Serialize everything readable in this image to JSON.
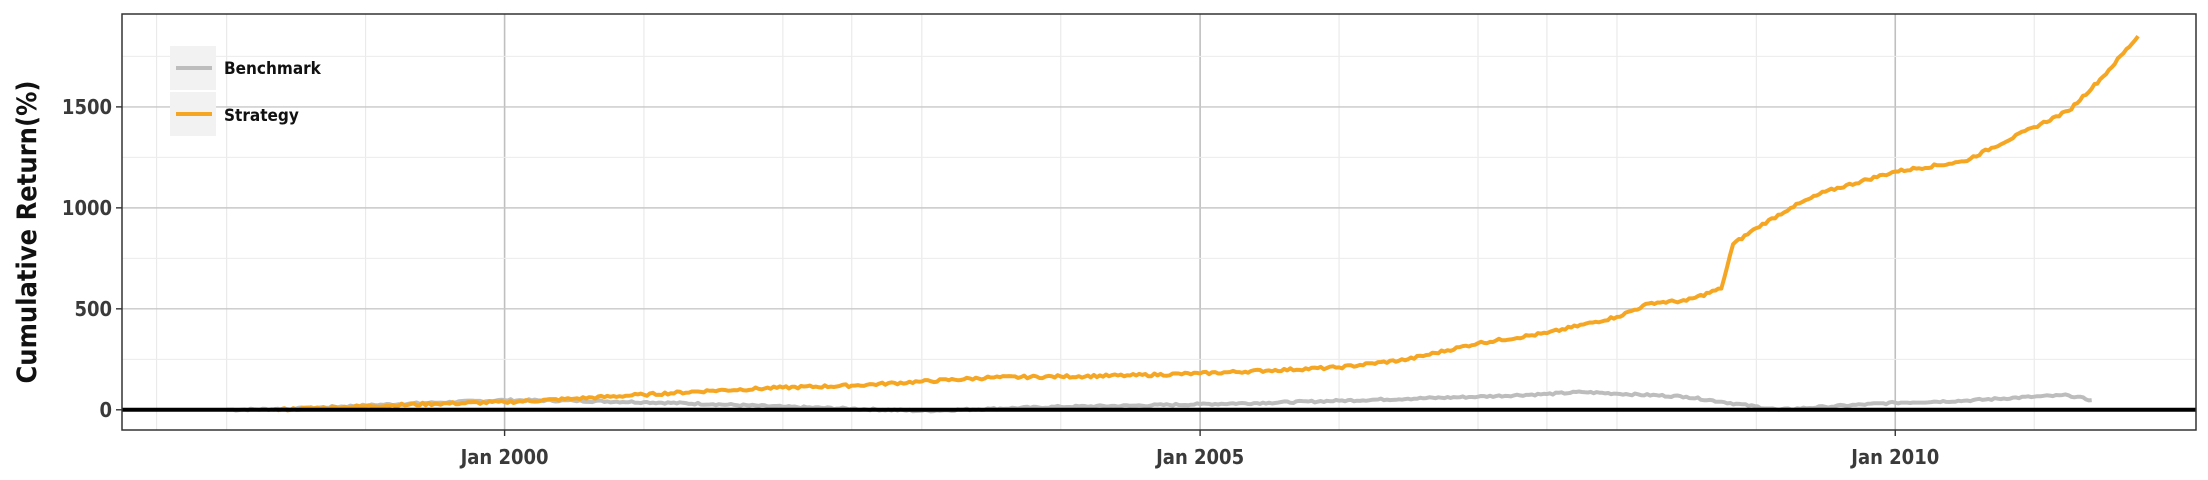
{
  "chart_data": {
    "type": "line",
    "title": "",
    "xlabel": "",
    "ylabel": "Cumulative Return(%)",
    "x_ticks": [
      "Jan 2000",
      "Jan 2005",
      "Jan 2010"
    ],
    "y_ticks": [
      "0",
      "500",
      "1000",
      "1500"
    ],
    "xlim": [
      "1997-04-01",
      "2012-03-01"
    ],
    "ylim": [
      -100,
      1960
    ],
    "grid": true,
    "legend_position": "top-left",
    "series": [
      {
        "name": "Benchmark",
        "color": "#bdbdbd",
        "points": [
          [
            "1998-01-01",
            0
          ],
          [
            "1998-07-01",
            5
          ],
          [
            "1999-01-01",
            22
          ],
          [
            "1999-07-01",
            35
          ],
          [
            "2000-01-01",
            48
          ],
          [
            "2000-07-01",
            45
          ],
          [
            "2001-01-01",
            38
          ],
          [
            "2001-07-01",
            28
          ],
          [
            "2002-01-01",
            15
          ],
          [
            "2002-07-01",
            5
          ],
          [
            "2003-01-01",
            -5
          ],
          [
            "2003-07-01",
            5
          ],
          [
            "2004-01-01",
            15
          ],
          [
            "2004-07-01",
            20
          ],
          [
            "2005-01-01",
            28
          ],
          [
            "2005-07-01",
            35
          ],
          [
            "2006-01-01",
            45
          ],
          [
            "2006-07-01",
            55
          ],
          [
            "2007-01-01",
            65
          ],
          [
            "2007-07-01",
            78
          ],
          [
            "2007-10-01",
            88
          ],
          [
            "2008-01-01",
            80
          ],
          [
            "2008-07-01",
            65
          ],
          [
            "2008-10-01",
            40
          ],
          [
            "2009-03-01",
            0
          ],
          [
            "2009-07-01",
            15
          ],
          [
            "2010-01-01",
            35
          ],
          [
            "2010-07-01",
            45
          ],
          [
            "2011-01-01",
            65
          ],
          [
            "2011-04-01",
            72
          ],
          [
            "2011-06-01",
            48
          ]
        ]
      },
      {
        "name": "Strategy",
        "color": "#f5a623",
        "points": [
          [
            "1998-05-01",
            0
          ],
          [
            "1999-01-01",
            18
          ],
          [
            "1999-07-01",
            30
          ],
          [
            "2000-01-01",
            38
          ],
          [
            "2000-07-01",
            55
          ],
          [
            "2001-01-01",
            75
          ],
          [
            "2001-07-01",
            95
          ],
          [
            "2002-01-01",
            110
          ],
          [
            "2002-07-01",
            120
          ],
          [
            "2003-01-01",
            140
          ],
          [
            "2003-07-01",
            160
          ],
          [
            "2004-01-01",
            165
          ],
          [
            "2004-07-01",
            170
          ],
          [
            "2005-01-01",
            180
          ],
          [
            "2005-07-01",
            195
          ],
          [
            "2006-01-01",
            210
          ],
          [
            "2006-07-01",
            250
          ],
          [
            "2007-01-01",
            330
          ],
          [
            "2007-07-01",
            380
          ],
          [
            "2008-01-01",
            460
          ],
          [
            "2008-04-01",
            530
          ],
          [
            "2008-07-01",
            540
          ],
          [
            "2008-10-01",
            600
          ],
          [
            "2008-11-01",
            820
          ],
          [
            "2009-01-01",
            900
          ],
          [
            "2009-04-01",
            1000
          ],
          [
            "2009-07-01",
            1080
          ],
          [
            "2010-01-01",
            1180
          ],
          [
            "2010-07-01",
            1230
          ],
          [
            "2011-01-01",
            1400
          ],
          [
            "2011-04-01",
            1480
          ],
          [
            "2011-07-01",
            1650
          ],
          [
            "2011-10-01",
            1850
          ]
        ]
      }
    ]
  }
}
